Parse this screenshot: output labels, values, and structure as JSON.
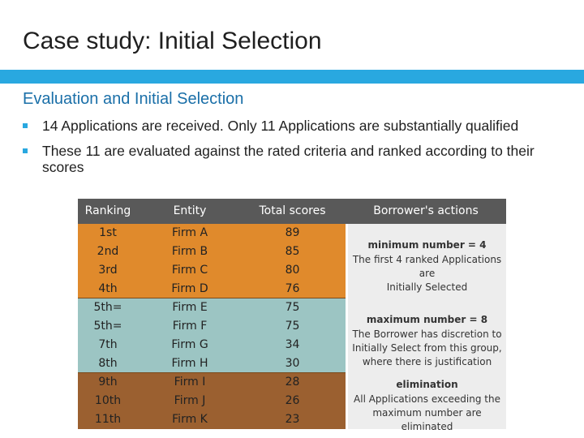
{
  "slide": {
    "title": "Case study: Initial Selection",
    "subtitle": "Evaluation and Initial Selection",
    "bullets": [
      "14 Applications are received. Only 11 Applications are substantially qualified",
      "These 11 are evaluated against the rated criteria and ranked according to their scores"
    ]
  },
  "table": {
    "headers": [
      "Ranking",
      "Entity",
      "Total scores",
      "Borrower's actions"
    ],
    "rows": [
      [
        "1st",
        "Firm A",
        "89"
      ],
      [
        "2nd",
        "Firm B",
        "85"
      ],
      [
        "3rd",
        "Firm C",
        "80"
      ],
      [
        "4th",
        "Firm D",
        "76"
      ],
      [
        "5th=",
        "Firm E",
        "75"
      ],
      [
        "5th=",
        "Firm F",
        "75"
      ],
      [
        "7th",
        "Firm G",
        "34"
      ],
      [
        "8th",
        "Firm H",
        "30"
      ],
      [
        "9th",
        "Firm I",
        "28"
      ],
      [
        "10th",
        "Firm J",
        "26"
      ],
      [
        "11th",
        "Firm K",
        "23"
      ]
    ],
    "actions": [
      {
        "heading": "minimum number = 4",
        "lines": [
          "The first 4 ranked Applications are",
          "Initially Selected"
        ]
      },
      {
        "heading": "maximum number = 8",
        "lines": [
          "The Borrower has discretion to",
          "Initially Select from this group,",
          "where there is justification"
        ]
      },
      {
        "heading": "elimination",
        "lines": [
          "All Applications exceeding the",
          "maximum number are eliminated"
        ]
      }
    ],
    "colors": {
      "top": "#e08a2c",
      "middle": "#9cc5c3",
      "bottom": "#9b6030",
      "header": "#595959",
      "accent": "#29a8e0"
    }
  }
}
